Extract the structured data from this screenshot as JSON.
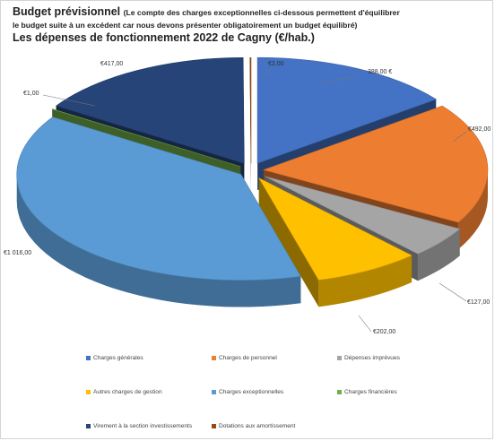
{
  "title": {
    "main": "Budget prévisionnel",
    "paren_line1": "(Le compte des charges exceptionnelles ci-dessous permettent d'équilibrer",
    "paren_line2": "le budget suite à un excédent car nous devons présenter obligatoirement un budget équilibré)",
    "subtitle": "Les dépenses de fonctionnement 2022 de Cagny (€/hab.)"
  },
  "chart_data": {
    "type": "pie",
    "title": "Les dépenses de fonctionnement 2022 de Cagny (€/hab.)",
    "slices": [
      {
        "name": "Charges générales",
        "value": 388,
        "label": "388,00 €",
        "color": "#4472c4"
      },
      {
        "name": "Charges de personnel",
        "value": 492,
        "label": "€492,00",
        "color": "#ed7d31"
      },
      {
        "name": "Dépenses imprévues",
        "value": 127,
        "label": "€127,00",
        "color": "#a5a5a5"
      },
      {
        "name": "Autres charges de gestion",
        "value": 202,
        "label": "€202,00",
        "color": "#ffc000"
      },
      {
        "name": "Charges exceptionnelles",
        "value": 1016,
        "label": "€1 016,00",
        "color": "#5b9bd5"
      },
      {
        "name": "Charges financières",
        "value": 1,
        "label": "€1,00",
        "color": "#70ad47"
      },
      {
        "name": "Virement à la section investissements",
        "value": 417,
        "label": "€417,00",
        "color": "#264478"
      },
      {
        "name": "Dotations aux amortissement",
        "value": 2,
        "label": "€2,00",
        "color": "#9e480e"
      }
    ],
    "legend_position": "bottom",
    "exploded": true,
    "style": "3d"
  }
}
